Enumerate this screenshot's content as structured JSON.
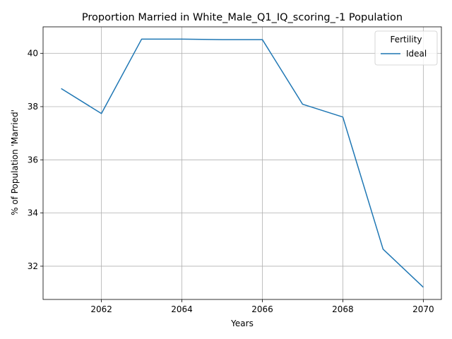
{
  "chart_data": {
    "type": "line",
    "title": "Proportion Married in White_Male_Q1_IQ_scoring_-1 Population",
    "xlabel": "Years",
    "ylabel": "% of Population 'Married'",
    "x": [
      2061,
      2062,
      2063,
      2064,
      2065,
      2066,
      2067,
      2068,
      2069,
      2070
    ],
    "series": [
      {
        "name": "Ideal",
        "color": "#1f77b4",
        "values": [
          38.68,
          37.74,
          40.54,
          40.54,
          40.52,
          40.52,
          38.09,
          37.61,
          32.64,
          31.21
        ]
      }
    ],
    "xlim": [
      2060.55,
      2070.45
    ],
    "ylim": [
      30.75,
      41.0
    ],
    "xticks": [
      2062,
      2064,
      2066,
      2068,
      2070
    ],
    "yticks": [
      32,
      34,
      36,
      38,
      40
    ],
    "grid": true,
    "legend": {
      "title": "Fertility",
      "placement": "top-right"
    }
  }
}
